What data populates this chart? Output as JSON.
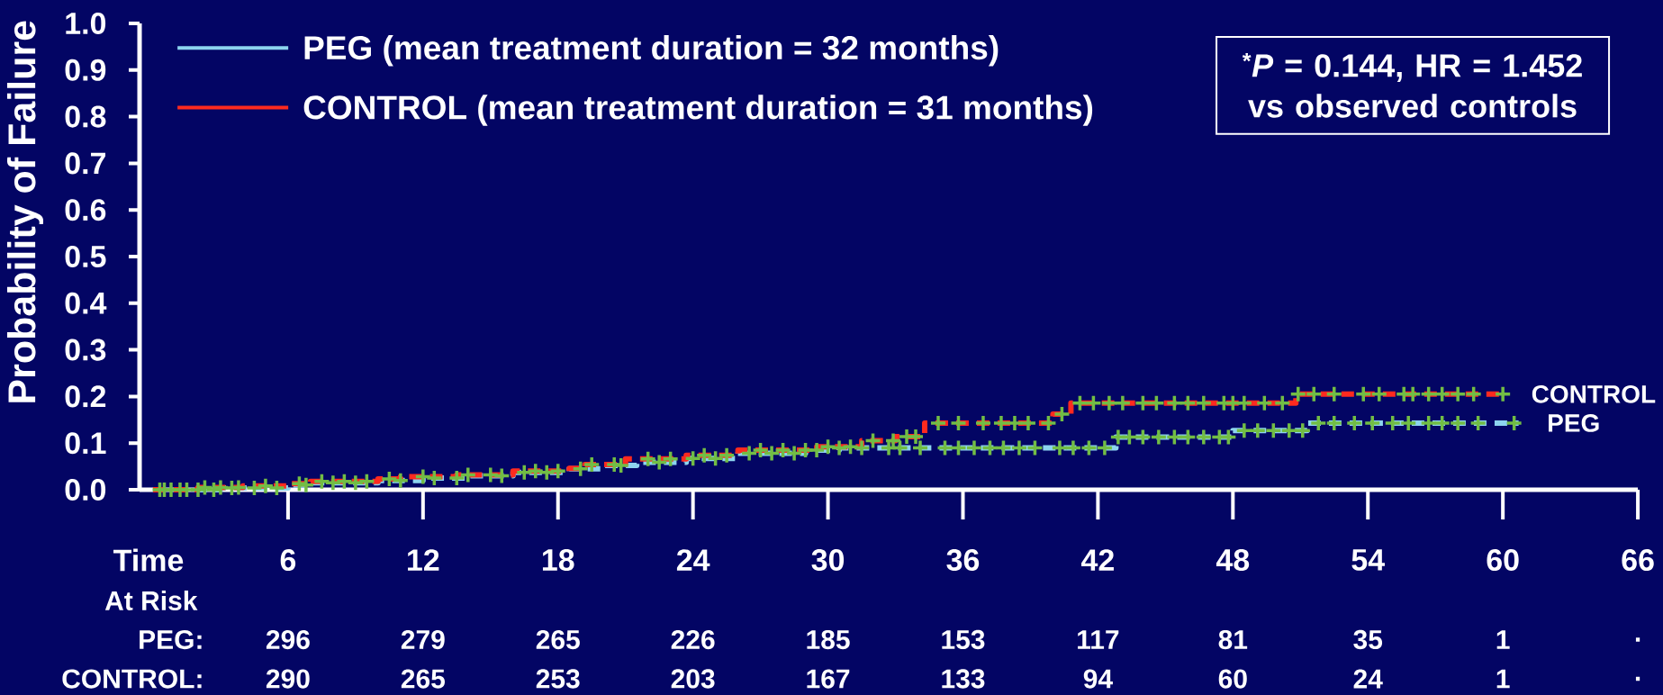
{
  "chart_data": {
    "type": "step",
    "xlabel": "Time",
    "ylabel": "Probability of Failure",
    "xlim": [
      -0.6,
      66
    ],
    "ylim": [
      0,
      1
    ],
    "xticks": [
      6,
      12,
      18,
      24,
      30,
      36,
      42,
      48,
      54,
      60,
      66
    ],
    "yticks": [
      {
        "value": 0,
        "label": "0.0"
      },
      0.1,
      0.2,
      0.3,
      0.4,
      0.5,
      0.6,
      0.7,
      0.8,
      0.9,
      {
        "value": 1,
        "label": "1.0"
      }
    ],
    "legend": "top left",
    "series": [
      {
        "name": "PEG (mean treatment duration = 32 months)",
        "color": "#8dd4ef",
        "line_style": "dashed",
        "x": [
          0,
          3,
          6,
          7,
          10,
          12,
          14,
          16,
          18.5,
          20,
          21.5,
          23.7,
          26,
          29,
          30.5,
          42.8,
          48,
          51.3,
          60.7
        ],
        "values": [
          0,
          0.004,
          0.01,
          0.015,
          0.02,
          0.025,
          0.03,
          0.037,
          0.045,
          0.052,
          0.059,
          0.067,
          0.078,
          0.085,
          0.09,
          0.113,
          0.127,
          0.143,
          0.143
        ]
      },
      {
        "name": "CONTROL (mean treatment duration = 31 months)",
        "color": "#ff2a1f",
        "line_style": "dashed",
        "x": [
          0,
          2,
          4,
          6,
          7,
          10,
          11,
          13.5,
          16,
          18.5,
          19.2,
          21,
          23.7,
          26,
          29.5,
          31.5,
          33,
          34.3,
          40,
          40.8,
          50.8,
          60
        ],
        "values": [
          0,
          0.005,
          0.008,
          0.013,
          0.018,
          0.023,
          0.028,
          0.032,
          0.04,
          0.046,
          0.054,
          0.066,
          0.074,
          0.085,
          0.092,
          0.105,
          0.114,
          0.143,
          0.162,
          0.186,
          0.205,
          0.205
        ]
      },
      {
        "type": "scatter",
        "color": "#72bd45",
        "marker": "cross",
        "x": [
          0.5,
          1.2,
          2.0,
          2.7,
          3.5,
          4.5,
          5.5,
          6.8,
          8.0,
          9.0,
          11.0,
          12.5,
          13.5,
          15.5,
          16.5,
          17.5,
          19.0,
          20.8,
          22.5,
          24.0,
          25.0,
          26.5,
          27.5,
          28.5,
          29.5,
          30.5,
          31.5,
          32.7,
          33.2,
          34.1,
          35.2,
          35.8,
          36.5,
          37.2,
          37.8,
          38.5,
          39.2,
          40.3,
          40.9,
          41.6,
          42.3,
          42.9,
          43.4,
          44.0,
          44.7,
          45.4,
          46.0,
          46.7,
          47.4,
          47.8,
          48.5,
          49.1,
          49.8,
          50.5,
          51.1,
          51.8,
          52.5,
          53.4,
          54.2,
          55.1,
          55.8,
          56.7,
          57.3,
          58.0,
          58.9,
          60.5
        ],
        "values": [
          0,
          0,
          0,
          0,
          0.004,
          0.004,
          0.004,
          0.01,
          0.015,
          0.015,
          0.02,
          0.025,
          0.025,
          0.03,
          0.037,
          0.037,
          0.045,
          0.052,
          0.059,
          0.067,
          0.067,
          0.078,
          0.078,
          0.078,
          0.085,
          0.09,
          0.09,
          0.09,
          0.09,
          0.09,
          0.09,
          0.09,
          0.09,
          0.09,
          0.09,
          0.09,
          0.09,
          0.09,
          0.09,
          0.09,
          0.09,
          0.113,
          0.113,
          0.113,
          0.113,
          0.113,
          0.113,
          0.113,
          0.113,
          0.113,
          0.127,
          0.127,
          0.127,
          0.127,
          0.127,
          0.143,
          0.143,
          0.143,
          0.143,
          0.143,
          0.143,
          0.143,
          0.143,
          0.143,
          0.143,
          0.143
        ]
      },
      {
        "type": "scatter",
        "color": "#72bd45",
        "marker": "cross",
        "x": [
          0.3,
          0.8,
          1.5,
          2.3,
          3.0,
          3.8,
          5.0,
          6.5,
          7.5,
          8.5,
          9.5,
          10.5,
          12.0,
          14.0,
          15.0,
          17.0,
          18.0,
          19.5,
          20.5,
          22.0,
          23.0,
          24.5,
          25.5,
          27.0,
          28.0,
          29.0,
          30.0,
          31.0,
          32.0,
          32.9,
          33.5,
          33.9,
          34.9,
          35.8,
          36.9,
          37.7,
          38.3,
          38.9,
          39.8,
          40.4,
          41.2,
          41.8,
          42.5,
          43.1,
          44.0,
          44.6,
          45.4,
          46.0,
          46.7,
          47.6,
          48.0,
          48.5,
          49.4,
          50.2,
          50.9,
          51.6,
          52.5,
          53.8,
          54.5,
          55.6,
          56.0,
          56.7,
          57.3,
          58.0,
          58.7,
          60.0
        ],
        "values": [
          0,
          0,
          0,
          0.005,
          0.005,
          0.005,
          0.008,
          0.013,
          0.018,
          0.018,
          0.018,
          0.023,
          0.028,
          0.032,
          0.032,
          0.04,
          0.04,
          0.054,
          0.054,
          0.066,
          0.066,
          0.074,
          0.074,
          0.085,
          0.085,
          0.085,
          0.092,
          0.092,
          0.105,
          0.105,
          0.114,
          0.114,
          0.143,
          0.143,
          0.143,
          0.143,
          0.143,
          0.143,
          0.143,
          0.162,
          0.186,
          0.186,
          0.186,
          0.186,
          0.186,
          0.186,
          0.186,
          0.186,
          0.186,
          0.186,
          0.186,
          0.186,
          0.186,
          0.186,
          0.205,
          0.205,
          0.205,
          0.205,
          0.205,
          0.205,
          0.205,
          0.205,
          0.205,
          0.205,
          0.205,
          0.205
        ]
      }
    ],
    "annotations": [
      "$^{*}$*P* = 0.144, HR = 1.452 vs observed controls",
      "At Risk",
      "PEG:",
      "296",
      "279",
      "265",
      "226",
      "185",
      "153",
      "117",
      "81",
      "35",
      "1",
      ".",
      "CONTROL:",
      "290",
      "265",
      "253",
      "203",
      "167",
      "133",
      "94",
      "60",
      "24",
      "1",
      ".",
      {
        "text": "CONTROL",
        "x": 60,
        "y": 0.205
      },
      {
        "text": "PEG",
        "x": 60.7,
        "y": 0.143
      }
    ]
  }
}
